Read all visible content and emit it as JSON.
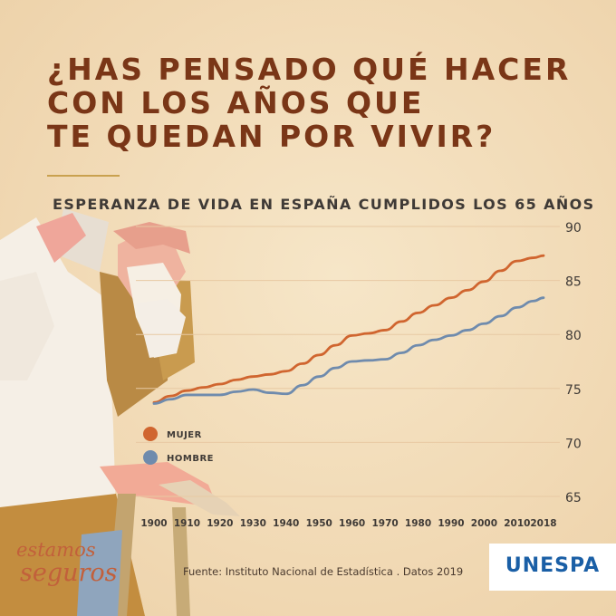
{
  "headline": {
    "lines": [
      "¿HAS PENSADO QUÉ HACER",
      "CON LOS AÑOS QUE",
      "TE QUEDAN POR VIVIR?"
    ]
  },
  "source": "Fuente: Instituto Nacional de Estadística . Datos 2019",
  "brand_text": [
    "estamos",
    "seguros"
  ],
  "logo_text": "UNESPA",
  "colors": {
    "headline": "#7a3617",
    "mujer": "#d0652f",
    "hombre": "#6f8bad",
    "grid": "#e8c9a3"
  },
  "chart_data": {
    "type": "line",
    "title": "ESPERANZA DE VIDA EN ESPAÑA CUMPLIDOS LOS 65 AÑOS",
    "x": [
      1900,
      1905,
      1910,
      1915,
      1920,
      1925,
      1930,
      1935,
      1940,
      1945,
      1950,
      1955,
      1960,
      1965,
      1970,
      1975,
      1980,
      1985,
      1990,
      1995,
      2000,
      2005,
      2010,
      2015,
      2018
    ],
    "x_ticks": [
      1900,
      1910,
      1920,
      1930,
      1940,
      1950,
      1960,
      1970,
      1980,
      1990,
      2000,
      2010,
      2018
    ],
    "y_ticks": [
      65,
      70,
      75,
      80,
      85,
      90
    ],
    "ylim": [
      65,
      90
    ],
    "xlim": [
      1900,
      2018
    ],
    "grid": true,
    "legend_position": "left",
    "series": [
      {
        "name": "MUJER",
        "color": "#d0652f",
        "values": [
          73.7,
          74.3,
          74.8,
          75.1,
          75.4,
          75.8,
          76.1,
          76.3,
          76.6,
          77.3,
          78.1,
          79.0,
          79.9,
          80.1,
          80.4,
          81.2,
          82.0,
          82.7,
          83.4,
          84.1,
          84.9,
          85.9,
          86.8,
          87.1,
          87.3
        ]
      },
      {
        "name": "HOMBRE",
        "color": "#6f8bad",
        "values": [
          73.6,
          74.0,
          74.4,
          74.4,
          74.4,
          74.7,
          74.9,
          74.6,
          74.5,
          75.3,
          76.1,
          76.9,
          77.5,
          77.6,
          77.7,
          78.3,
          79.0,
          79.5,
          79.9,
          80.4,
          81.0,
          81.7,
          82.5,
          83.1,
          83.4
        ]
      }
    ]
  }
}
